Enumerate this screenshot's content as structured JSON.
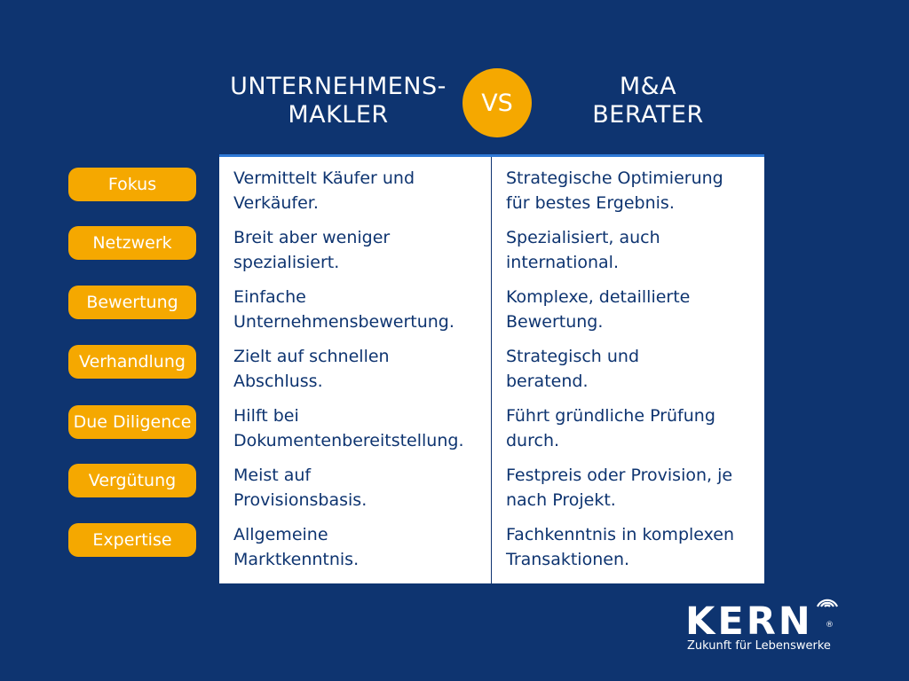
{
  "header": {
    "left_line1": "UNTERNEHMENS-",
    "left_line2": "MAKLER",
    "vs": "VS",
    "right_line1": "M&A",
    "right_line2": "BERATER"
  },
  "rows": [
    {
      "label": "Fokus",
      "left": [
        "Vermittelt Käufer und",
        "Verkäufer."
      ],
      "right": [
        "Strategische Optimierung",
        "für bestes Ergebnis."
      ]
    },
    {
      "label": "Netzwerk",
      "left": [
        "Breit aber weniger",
        "spezialisiert."
      ],
      "right": [
        "Spezialisiert, auch",
        "international."
      ]
    },
    {
      "label": "Bewertung",
      "left": [
        "Einfache",
        "Unternehmensbewertung."
      ],
      "right": [
        "Komplexe, detaillierte",
        "Bewertung."
      ]
    },
    {
      "label": "Verhandlung",
      "left": [
        "Zielt auf schnellen",
        "Abschluss."
      ],
      "right": [
        "Strategisch und",
        "beratend."
      ]
    },
    {
      "label": "Due Diligence",
      "left": [
        "Hilft bei",
        "Dokumentenbereitstellung."
      ],
      "right": [
        "Führt gründliche Prüfung",
        "durch."
      ]
    },
    {
      "label": "Vergütung",
      "left": [
        "Meist auf",
        "Provisionsbasis."
      ],
      "right": [
        "Festpreis oder Provision, je",
        "nach Projekt."
      ]
    },
    {
      "label": "Expertise",
      "left": [
        "Allgemeine",
        "Marktkenntnis."
      ],
      "right": [
        "Fachkenntnis in komplexen",
        "Transaktionen."
      ]
    }
  ],
  "logo": {
    "name": "KERN",
    "registered": "®",
    "tagline": "Zukunft für Lebenswerke"
  },
  "colors": {
    "background": "#0e3470",
    "accent": "#f5a800",
    "table_border": "#2f79d6",
    "text_dark": "#0e3470"
  }
}
